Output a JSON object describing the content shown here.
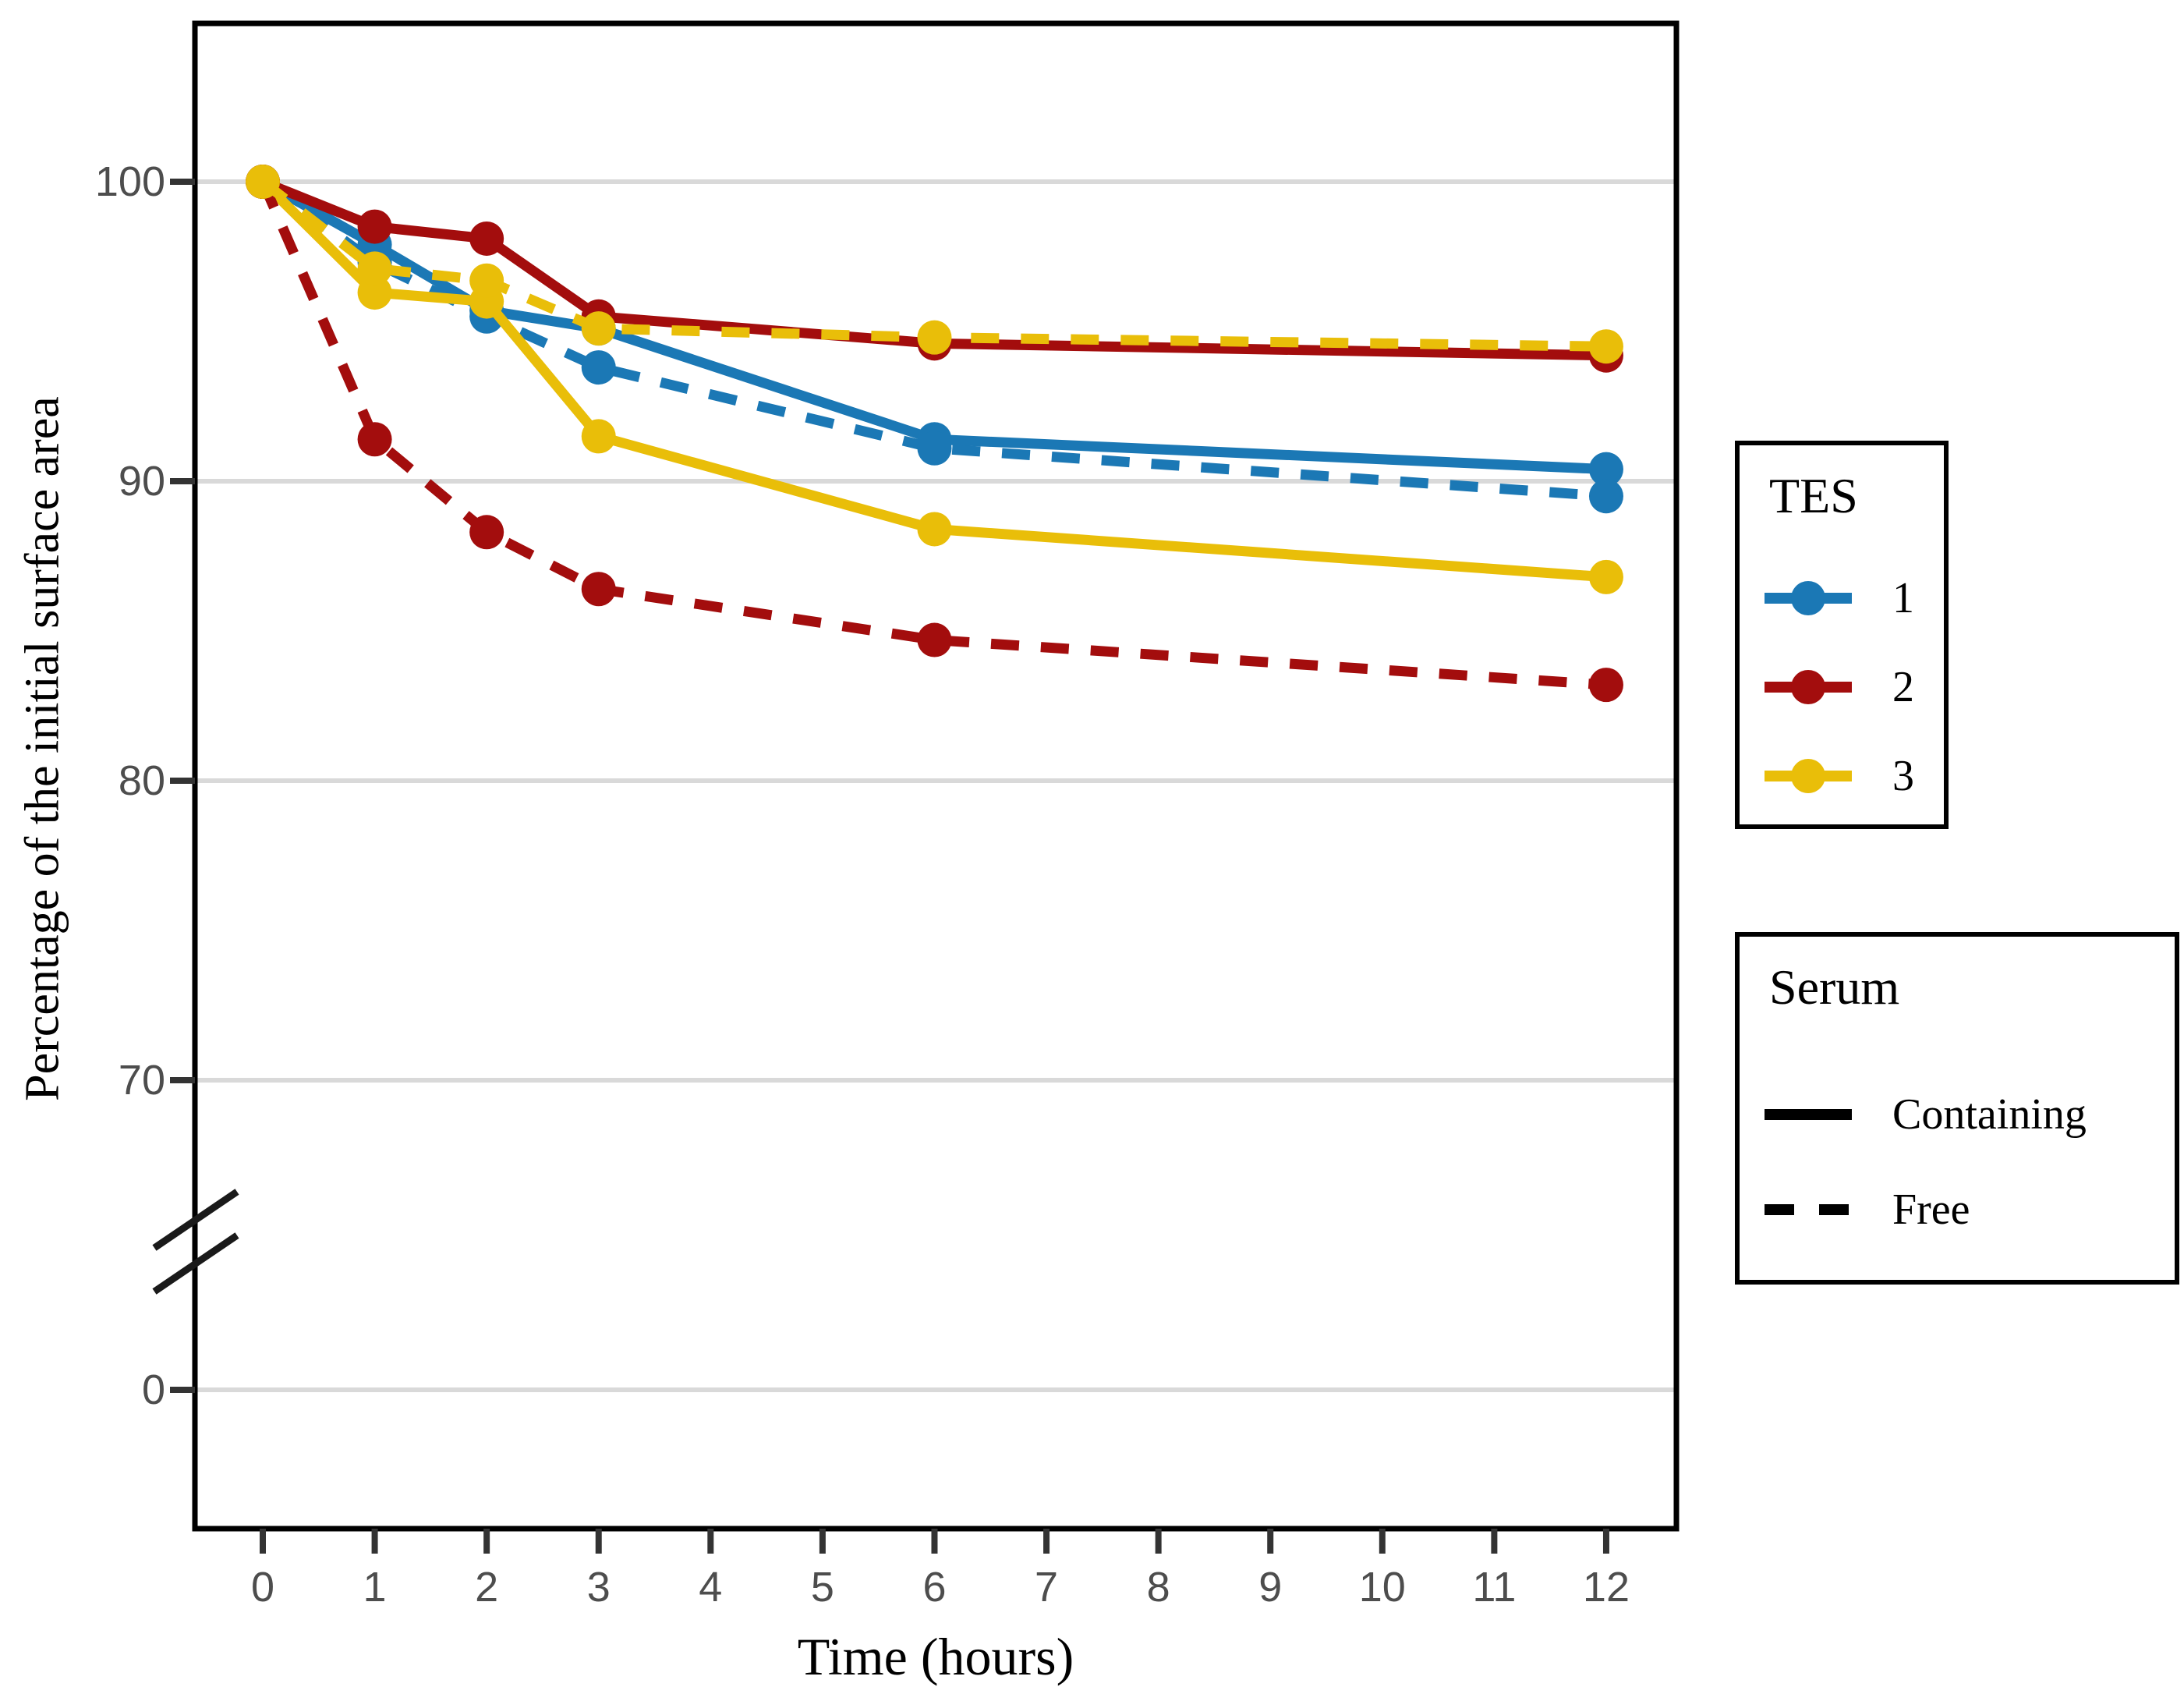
{
  "chart_data": {
    "type": "line",
    "title": "",
    "xlabel": "Time (hours)",
    "ylabel": "Percentage of the initial surface area",
    "x": [
      0,
      1,
      2,
      3,
      6,
      12
    ],
    "x_ticks": [
      0,
      1,
      2,
      3,
      4,
      5,
      6,
      7,
      8,
      9,
      10,
      11,
      12
    ],
    "y_ticks_upper": [
      100,
      90,
      80,
      70
    ],
    "y_tick_below_break": 0,
    "y_axis_break": true,
    "grid": "horizontal-only",
    "legend_position": "right",
    "series": [
      {
        "tes": "1",
        "serum": "Containing",
        "color": "#1b78b5",
        "dashed": false,
        "values": [
          100,
          97.9,
          95.7,
          95.1,
          91.4,
          90.4
        ]
      },
      {
        "tes": "1",
        "serum": "Free",
        "color": "#1b78b5",
        "dashed": true,
        "values": [
          100,
          97.3,
          95.5,
          93.8,
          91.1,
          89.5
        ]
      },
      {
        "tes": "2",
        "serum": "Containing",
        "color": "#a30d0d",
        "dashed": false,
        "values": [
          100,
          98.5,
          98.1,
          95.5,
          94.6,
          94.2
        ]
      },
      {
        "tes": "2",
        "serum": "Free",
        "color": "#a30d0d",
        "dashed": true,
        "values": [
          100,
          91.4,
          88.3,
          86.4,
          84.7,
          83.2
        ]
      },
      {
        "tes": "3",
        "serum": "Containing",
        "color": "#e9be09",
        "dashed": false,
        "values": [
          100,
          96.3,
          96.0,
          91.5,
          88.4,
          86.8
        ]
      },
      {
        "tes": "3",
        "serum": "Free",
        "color": "#e9be09",
        "dashed": true,
        "values": [
          100,
          97.1,
          96.7,
          95.1,
          94.8,
          94.5
        ]
      }
    ]
  },
  "legend_tes": {
    "title": "TES",
    "entries": [
      {
        "label": "1",
        "color": "#1b78b5"
      },
      {
        "label": "2",
        "color": "#a30d0d"
      },
      {
        "label": "3",
        "color": "#e9be09"
      }
    ]
  },
  "legend_serum": {
    "title": "Serum",
    "entries": [
      {
        "label": "Containing",
        "dashed": false
      },
      {
        "label": "Free",
        "dashed": true
      }
    ]
  },
  "colors": {
    "grid": "#d9d9d9",
    "axis": "#000000",
    "tick": "#333333",
    "tick_label": "#4d4d4d",
    "background": "#ffffff"
  }
}
